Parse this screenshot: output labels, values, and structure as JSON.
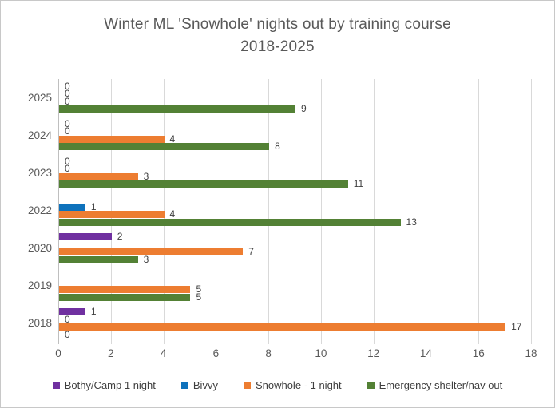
{
  "chart_data": {
    "type": "bar",
    "orientation": "horizontal",
    "title": "Winter ML 'Snowhole' nights out by training course 2018-2025",
    "title_lines": [
      "Winter ML 'Snowhole' nights out by training course",
      "2018-2025"
    ],
    "categories": [
      "2025",
      "2024",
      "2023",
      "2022",
      "2020",
      "2019",
      "2018"
    ],
    "series": [
      {
        "name": "Bothy/Camp 1 night",
        "color": "#7030A0",
        "values": [
          0,
          0,
          0,
          null,
          2,
          null,
          1
        ]
      },
      {
        "name": "Bivvy",
        "color": "#0E72BC",
        "values": [
          0,
          0,
          0,
          1,
          null,
          null,
          0
        ]
      },
      {
        "name": "Snowhole - 1 night",
        "color": "#ED7D31",
        "values": [
          0,
          4,
          3,
          4,
          7,
          5,
          17
        ]
      },
      {
        "name": "Emergency shelter/nav out",
        "color": "#538135",
        "values": [
          9,
          8,
          11,
          13,
          3,
          5,
          0
        ]
      }
    ],
    "x_ticks": [
      0,
      2,
      4,
      6,
      8,
      10,
      12,
      14,
      16,
      18
    ],
    "xlim": [
      0,
      18
    ],
    "grid": true,
    "data_labels": true,
    "legend_position": "bottom",
    "colors": {
      "grid": "#d9d9d9",
      "axis_line": "#bfbfbf",
      "title_text": "#595959",
      "tick_text": "#595959",
      "data_label_text": "#404040",
      "border": "#c8c8c8",
      "background": "#ffffff"
    }
  }
}
